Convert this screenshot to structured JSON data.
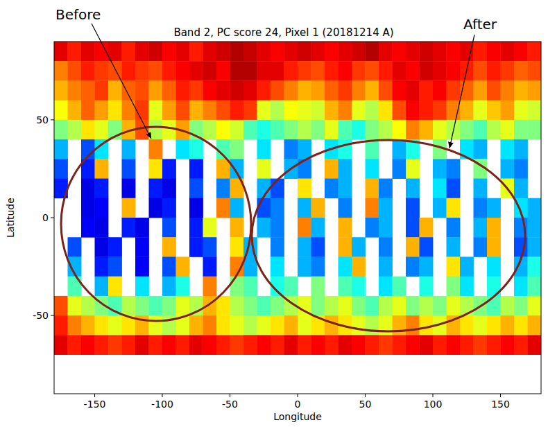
{
  "chart_data": {
    "type": "heatmap",
    "title": "Band 2, PC score 24, Pixel 1 (20181214 A)",
    "x_label": "Longitude",
    "y_label": "Latitude",
    "annotations": [
      "Before",
      "After"
    ],
    "xlim": [
      -180,
      180
    ],
    "ylim": [
      -90,
      90
    ],
    "xticks": [
      -150,
      -100,
      -50,
      0,
      50,
      100,
      150
    ],
    "yticks": [
      -50,
      0,
      50
    ],
    "zlim": [
      0,
      1
    ],
    "x_edges": [
      -180,
      -170,
      -160,
      -150,
      -140,
      -130,
      -120,
      -110,
      -100,
      -90,
      -80,
      -70,
      -60,
      -50,
      -40,
      -30,
      -20,
      -10,
      0,
      10,
      20,
      30,
      40,
      50,
      60,
      70,
      80,
      90,
      100,
      110,
      120,
      130,
      140,
      150,
      160,
      170,
      180
    ],
    "y_edges": [
      90,
      80,
      70,
      60,
      50,
      40,
      30,
      20,
      10,
      0,
      -10,
      -20,
      -30,
      -40,
      -50,
      -60,
      -70
    ],
    "z": [
      [
        0.9,
        0.85,
        0.9,
        0.88,
        0.9,
        0.85,
        0.9,
        0.92,
        0.88,
        0.9,
        0.85,
        0.9,
        0.92,
        0.95,
        0.93,
        0.9,
        0.88,
        0.9,
        0.92,
        0.9,
        0.88,
        0.9,
        0.92,
        0.95,
        0.9,
        0.88,
        0.9,
        0.92,
        0.9,
        0.88,
        0.9,
        0.85,
        0.88,
        0.9,
        0.88,
        0.85
      ],
      [
        0.75,
        0.8,
        0.85,
        0.82,
        0.8,
        0.85,
        0.82,
        0.8,
        0.85,
        0.88,
        0.9,
        0.92,
        0.88,
        0.95,
        0.95,
        0.9,
        0.9,
        0.85,
        0.82,
        0.8,
        0.85,
        0.88,
        0.82,
        0.8,
        0.85,
        0.9,
        0.88,
        0.92,
        0.9,
        0.88,
        0.85,
        0.8,
        0.85,
        0.82,
        0.78,
        0.8
      ],
      [
        0.7,
        0.75,
        0.78,
        0.82,
        0.7,
        0.78,
        0.8,
        0.72,
        0.78,
        0.85,
        0.82,
        0.88,
        0.9,
        0.92,
        0.9,
        0.85,
        0.8,
        0.75,
        0.7,
        0.72,
        0.78,
        0.82,
        0.75,
        0.7,
        0.8,
        0.88,
        0.9,
        0.85,
        0.88,
        0.82,
        0.78,
        0.72,
        0.8,
        0.75,
        0.7,
        0.72
      ],
      [
        0.62,
        0.7,
        0.78,
        0.72,
        0.65,
        0.75,
        0.82,
        0.6,
        0.72,
        0.8,
        0.7,
        0.75,
        0.8,
        0.85,
        0.82,
        0.6,
        0.55,
        0.62,
        0.6,
        0.58,
        0.7,
        0.75,
        0.6,
        0.55,
        0.65,
        0.8,
        0.88,
        0.85,
        0.82,
        0.75,
        0.7,
        0.6,
        0.68,
        0.72,
        0.6,
        0.58
      ],
      [
        0.5,
        0.55,
        0.65,
        0.6,
        0.5,
        0.7,
        0.8,
        0.55,
        0.6,
        0.72,
        0.5,
        0.55,
        0.62,
        0.58,
        0.45,
        0.4,
        0.45,
        0.5,
        0.55,
        0.5,
        0.6,
        0.45,
        0.4,
        0.5,
        0.55,
        0.62,
        0.75,
        0.7,
        0.6,
        0.55,
        0.5,
        0.45,
        0.55,
        0.6,
        0.5,
        0.5
      ],
      [
        0.3,
        null,
        0.2,
        0.35,
        null,
        0.3,
        null,
        0.75,
        null,
        0.35,
        0.4,
        null,
        0.45,
        0.5,
        null,
        0.35,
        null,
        0.25,
        0.3,
        null,
        0.35,
        0.4,
        null,
        0.45,
        null,
        0.3,
        0.4,
        null,
        0.5,
        null,
        0.35,
        0.3,
        null,
        0.35,
        0.3,
        null
      ],
      [
        0.2,
        null,
        0.15,
        0.7,
        null,
        0.2,
        null,
        0.65,
        0.15,
        null,
        0.15,
        null,
        0.7,
        0.3,
        null,
        0.6,
        null,
        0.3,
        0.25,
        null,
        0.7,
        0.3,
        null,
        0.35,
        null,
        0.25,
        0.6,
        null,
        0.3,
        0.25,
        null,
        0.5,
        null,
        0.3,
        0.25,
        null
      ],
      [
        0.15,
        null,
        0.1,
        0.15,
        null,
        0.1,
        null,
        0.15,
        0.1,
        null,
        0.2,
        null,
        0.25,
        0.7,
        null,
        0.3,
        0.2,
        null,
        0.65,
        null,
        0.25,
        0.3,
        null,
        0.7,
        0.25,
        null,
        0.3,
        null,
        0.35,
        0.2,
        null,
        0.3,
        null,
        0.6,
        0.3,
        null
      ],
      [
        null,
        null,
        0.1,
        0.12,
        null,
        0.7,
        null,
        0.1,
        0.15,
        null,
        0.1,
        null,
        0.75,
        0.3,
        null,
        0.2,
        0.25,
        null,
        0.3,
        0.7,
        null,
        0.25,
        null,
        0.75,
        0.3,
        null,
        0.2,
        null,
        0.3,
        0.65,
        null,
        0.25,
        0.3,
        null,
        0.35,
        0.3
      ],
      [
        null,
        null,
        0.12,
        0.1,
        null,
        0.15,
        0.1,
        null,
        0.2,
        null,
        0.15,
        0.6,
        null,
        0.7,
        null,
        0.3,
        0.25,
        null,
        0.75,
        0.3,
        null,
        0.7,
        null,
        0.25,
        0.3,
        null,
        0.2,
        0.7,
        null,
        0.25,
        null,
        0.3,
        0.7,
        null,
        0.25,
        0.3
      ],
      [
        null,
        0.2,
        null,
        0.1,
        0.15,
        null,
        0.12,
        null,
        0.7,
        null,
        0.15,
        0.2,
        null,
        0.65,
        0.3,
        null,
        0.25,
        null,
        0.3,
        0.2,
        null,
        0.7,
        0.3,
        null,
        0.25,
        null,
        0.7,
        0.2,
        null,
        0.3,
        null,
        0.25,
        0.7,
        null,
        0.2,
        0.3
      ],
      [
        null,
        0.3,
        null,
        0.15,
        0.2,
        null,
        0.12,
        null,
        0.2,
        0.7,
        null,
        0.15,
        null,
        0.75,
        0.3,
        null,
        0.35,
        null,
        0.3,
        0.25,
        null,
        0.35,
        0.7,
        null,
        0.3,
        null,
        0.25,
        0.3,
        null,
        0.65,
        0.3,
        null,
        0.35,
        null,
        0.3,
        0.4
      ],
      [
        null,
        0.45,
        null,
        0.3,
        0.65,
        null,
        0.35,
        null,
        0.3,
        0.4,
        null,
        0.75,
        null,
        0.5,
        0.45,
        null,
        0.4,
        0.45,
        null,
        0.5,
        null,
        0.45,
        0.4,
        null,
        0.35,
        0.45,
        null,
        0.4,
        null,
        0.5,
        0.35,
        null,
        0.4,
        null,
        0.35,
        0.45
      ],
      [
        0.8,
        0.6,
        0.55,
        0.5,
        0.45,
        0.55,
        0.5,
        0.45,
        0.5,
        0.6,
        0.55,
        0.7,
        0.65,
        0.55,
        0.5,
        0.45,
        0.5,
        0.55,
        0.6,
        0.5,
        0.55,
        0.6,
        0.5,
        0.45,
        0.55,
        0.6,
        0.5,
        0.55,
        0.5,
        0.6,
        0.55,
        0.5,
        0.45,
        0.55,
        0.5,
        0.6
      ],
      [
        0.85,
        0.75,
        0.7,
        0.65,
        0.6,
        0.65,
        0.7,
        0.6,
        0.55,
        0.6,
        0.7,
        0.75,
        0.65,
        0.6,
        0.55,
        0.6,
        0.65,
        0.7,
        0.6,
        0.65,
        0.7,
        0.65,
        0.6,
        0.55,
        0.6,
        0.7,
        0.75,
        0.65,
        0.6,
        0.7,
        0.65,
        0.6,
        0.65,
        0.7,
        0.65,
        0.7
      ],
      [
        0.9,
        0.85,
        0.88,
        0.85,
        0.82,
        0.85,
        0.9,
        0.85,
        0.88,
        0.85,
        0.9,
        0.88,
        0.85,
        0.82,
        0.85,
        0.88,
        0.85,
        0.9,
        0.85,
        0.88,
        0.85,
        0.9,
        0.88,
        0.85,
        0.82,
        0.85,
        0.88,
        0.9,
        0.85,
        0.88,
        0.85,
        0.82,
        0.85,
        0.88,
        0.85,
        0.9
      ]
    ]
  }
}
